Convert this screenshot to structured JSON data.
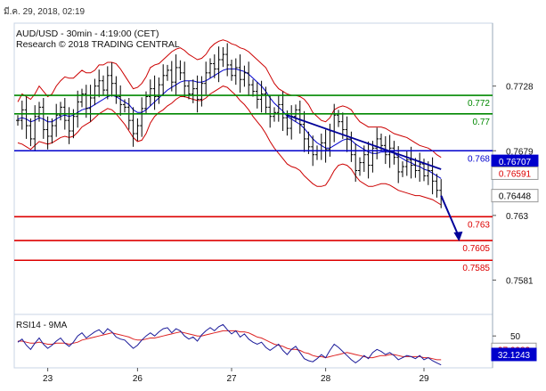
{
  "header": {
    "timestamp": "มี.ค. 29, 2018, 02:19",
    "title": "AUD/USD - 30min - 4:19:00 (CET)",
    "credit": "Research © 2018 TRADING CENTRAL"
  },
  "colors": {
    "background": "#ffffff",
    "frame": "#c8d4e4",
    "price": "#000000",
    "bollinger": "#cc0000",
    "moving_average": "#0000cc",
    "resistance": "#008800",
    "pivot": "#0000cc",
    "support": "#dd0000",
    "trendline": "#000099",
    "rsi": "#1a1a99",
    "rsi_ma": "#dd2222"
  },
  "chart_data": [
    {
      "type": "candlestick",
      "title": "AUD/USD - 30min - 4:19:00 (CET)",
      "instrument": "AUD/USD",
      "timeframe": "30min",
      "x_ticks": [
        "23",
        "26",
        "27",
        "28",
        "29"
      ],
      "y_ticks": [
        0.7728,
        0.7679,
        0.763,
        0.7581
      ],
      "ylim": [
        0.7555,
        0.7775
      ],
      "series": [
        {
          "name": "",
          "kind": "close",
          "values": [
            0.7702,
            0.771,
            0.7698,
            0.7688,
            0.7705,
            0.7712,
            0.7695,
            0.769,
            0.7698,
            0.7706,
            0.7712,
            0.7702,
            0.7694,
            0.7705,
            0.7716,
            0.7722,
            0.7711,
            0.7719,
            0.7728,
            0.7732,
            0.7725,
            0.7736,
            0.773,
            0.772,
            0.7714,
            0.7712,
            0.7702,
            0.7692,
            0.7698,
            0.7711,
            0.772,
            0.7726,
            0.772,
            0.7729,
            0.7736,
            0.774,
            0.7731,
            0.7742,
            0.7738,
            0.7728,
            0.7722,
            0.7726,
            0.7718,
            0.773,
            0.7738,
            0.7745,
            0.7741,
            0.7748,
            0.7752,
            0.7744,
            0.7736,
            0.7742,
            0.7733,
            0.7738,
            0.7729,
            0.7724,
            0.7718,
            0.7722,
            0.7712,
            0.7705,
            0.7708,
            0.7714,
            0.7704,
            0.7696,
            0.7705,
            0.771,
            0.7699,
            0.7688,
            0.7682,
            0.7676,
            0.7679,
            0.7685,
            0.768,
            0.7694,
            0.7706,
            0.7701,
            0.7695,
            0.7688,
            0.7676,
            0.7664,
            0.767,
            0.7676,
            0.7668,
            0.7681,
            0.7688,
            0.7683,
            0.7676,
            0.7681,
            0.7674,
            0.7663,
            0.7667,
            0.7672,
            0.7668,
            0.7664,
            0.7669,
            0.766,
            0.7664,
            0.7656,
            0.7649,
            0.7644
          ]
        },
        {
          "name": "",
          "kind": "bollinger-upper",
          "values": [
            0.7716,
            0.7722,
            0.772,
            0.7718,
            0.7722,
            0.7728,
            0.7724,
            0.772,
            0.7722,
            0.7728,
            0.7732,
            0.7735,
            0.7734,
            0.7734,
            0.7737,
            0.774,
            0.7738,
            0.7738,
            0.774,
            0.7744,
            0.7744,
            0.7746,
            0.7746,
            0.7745,
            0.7741,
            0.7736,
            0.7731,
            0.7726,
            0.7727,
            0.773,
            0.7735,
            0.7742,
            0.7744,
            0.7745,
            0.7748,
            0.7751,
            0.7754,
            0.7756,
            0.7757,
            0.7755,
            0.7752,
            0.775,
            0.7748,
            0.7749,
            0.7752,
            0.7757,
            0.776,
            0.7762,
            0.7763,
            0.7762,
            0.776,
            0.7759,
            0.7757,
            0.7756,
            0.7754,
            0.7751,
            0.7748,
            0.7745,
            0.7742,
            0.7736,
            0.773,
            0.7726,
            0.7724,
            0.7722,
            0.7721,
            0.7721,
            0.772,
            0.7718,
            0.7714,
            0.7708,
            0.7705,
            0.7702,
            0.7701,
            0.7704,
            0.771,
            0.7712,
            0.7713,
            0.7712,
            0.771,
            0.7705,
            0.7701,
            0.7699,
            0.7697,
            0.7697,
            0.7697,
            0.7697,
            0.7696,
            0.7694,
            0.7692,
            0.7691,
            0.769,
            0.7689,
            0.7687,
            0.7685,
            0.7683,
            0.7682,
            0.7681,
            0.7679,
            0.7676,
            0.7674
          ]
        },
        {
          "name": "",
          "kind": "bollinger-lower",
          "values": [
            0.7685,
            0.7684,
            0.7682,
            0.768,
            0.7683,
            0.7686,
            0.7685,
            0.7684,
            0.7685,
            0.7687,
            0.7689,
            0.769,
            0.7689,
            0.769,
            0.7693,
            0.7697,
            0.7699,
            0.7701,
            0.7704,
            0.7707,
            0.7709,
            0.7711,
            0.771,
            0.7707,
            0.7703,
            0.7699,
            0.7694,
            0.7689,
            0.7686,
            0.7687,
            0.7692,
            0.77,
            0.7705,
            0.7708,
            0.771,
            0.7713,
            0.7715,
            0.7718,
            0.772,
            0.772,
            0.7719,
            0.7718,
            0.7717,
            0.7717,
            0.7719,
            0.7722,
            0.7724,
            0.7726,
            0.7728,
            0.7727,
            0.7724,
            0.7721,
            0.7717,
            0.7714,
            0.771,
            0.7705,
            0.7701,
            0.7697,
            0.7692,
            0.7686,
            0.7681,
            0.7677,
            0.7673,
            0.7669,
            0.7667,
            0.7666,
            0.7664,
            0.766,
            0.7657,
            0.7654,
            0.7652,
            0.7652,
            0.7653,
            0.7658,
            0.7664,
            0.7668,
            0.7669,
            0.7668,
            0.7665,
            0.766,
            0.7656,
            0.7654,
            0.7652,
            0.7652,
            0.7653,
            0.7654,
            0.7654,
            0.7653,
            0.7651,
            0.7649,
            0.7648,
            0.7647,
            0.7646,
            0.7645,
            0.7645,
            0.7644,
            0.7643,
            0.7642,
            0.764,
            0.7638
          ]
        },
        {
          "name": "",
          "kind": "moving-average",
          "values": [
            0.7703,
            0.7704,
            0.7703,
            0.7701,
            0.7702,
            0.7704,
            0.7703,
            0.7701,
            0.7701,
            0.7703,
            0.7705,
            0.7706,
            0.7705,
            0.7706,
            0.7708,
            0.771,
            0.7711,
            0.7712,
            0.7714,
            0.7716,
            0.7718,
            0.772,
            0.7721,
            0.772,
            0.7718,
            0.7716,
            0.7714,
            0.771,
            0.7708,
            0.7708,
            0.771,
            0.7713,
            0.7716,
            0.7719,
            0.7722,
            0.7725,
            0.7727,
            0.7729,
            0.7731,
            0.7732,
            0.7732,
            0.7732,
            0.7731,
            0.7731,
            0.7732,
            0.7734,
            0.7736,
            0.7738,
            0.774,
            0.7741,
            0.7741,
            0.7741,
            0.774,
            0.7739,
            0.7737,
            0.7734,
            0.7731,
            0.7728,
            0.7724,
            0.7719,
            0.7715,
            0.7712,
            0.7709,
            0.7705,
            0.7703,
            0.7701,
            0.7699,
            0.7696,
            0.7692,
            0.7688,
            0.7685,
            0.7683,
            0.7681,
            0.7681,
            0.7683,
            0.7685,
            0.7687,
            0.7688,
            0.7687,
            0.7684,
            0.7682,
            0.768,
            0.7678,
            0.7677,
            0.7677,
            0.7678,
            0.7678,
            0.7678,
            0.7677,
            0.7675,
            0.7673,
            0.7671,
            0.767,
            0.7668,
            0.7667,
            0.7665,
            0.7664,
            0.7662,
            0.766,
            0.7658
          ]
        }
      ],
      "levels": [
        {
          "label": "0.772",
          "value": 0.7721,
          "type": "resistance",
          "color": "#008800"
        },
        {
          "label": "0.77",
          "value": 0.7707,
          "type": "resistance",
          "color": "#008800"
        },
        {
          "label": "0.768",
          "value": 0.7679,
          "type": "pivot",
          "color": "#0000cc"
        },
        {
          "label": "0.763",
          "value": 0.7629,
          "type": "support",
          "color": "#dd0000"
        },
        {
          "label": "0.7605",
          "value": 0.7611,
          "type": "support",
          "color": "#dd0000"
        },
        {
          "label": "0.7585",
          "value": 0.7596,
          "type": "support",
          "color": "#dd0000"
        }
      ],
      "price_tags": [
        {
          "label": "0.76707",
          "value": 0.7671,
          "fill": "#0000cc",
          "text": "#ffffff"
        },
        {
          "label": "0.76591",
          "value": 0.7662,
          "fill": "#ffffff",
          "text": "#dd0000"
        },
        {
          "label": "0.76448",
          "value": 0.7645,
          "fill": "#ffffff",
          "text": "#000000"
        }
      ],
      "trendline": {
        "from": {
          "index": 63,
          "value": 0.7706
        },
        "to": {
          "index": 99,
          "value": 0.7665
        }
      },
      "projection_arrow": {
        "from": {
          "index": 99,
          "value": 0.7645
        },
        "to": {
          "index": 103,
          "value": 0.7611
        }
      },
      "grid": false
    },
    {
      "type": "line",
      "title": "RSI14 - 9MA",
      "x_ticks": [
        "23",
        "26",
        "27",
        "28",
        "29"
      ],
      "y_ticks": [
        50
      ],
      "ylim": [
        20,
        70
      ],
      "series": [
        {
          "name": "",
          "kind": "rsi",
          "values": [
            44,
            47,
            41,
            37,
            43,
            48,
            42,
            38,
            41,
            45,
            48,
            43,
            40,
            44,
            50,
            53,
            48,
            51,
            54,
            56,
            52,
            57,
            54,
            49,
            47,
            46,
            42,
            38,
            41,
            46,
            50,
            53,
            50,
            54,
            57,
            58,
            53,
            57,
            55,
            50,
            47,
            49,
            45,
            51,
            55,
            58,
            55,
            59,
            61,
            56,
            52,
            55,
            49,
            52,
            47,
            44,
            42,
            44,
            39,
            36,
            39,
            42,
            36,
            32,
            37,
            40,
            34,
            28,
            26,
            25,
            28,
            32,
            29,
            36,
            42,
            39,
            35,
            31,
            27,
            24,
            27,
            31,
            28,
            34,
            37,
            35,
            32,
            34,
            31,
            27,
            29,
            31,
            30,
            28,
            31,
            27,
            29,
            26,
            24,
            22
          ]
        },
        {
          "name": "",
          "kind": "rsi-ma",
          "values": [
            45,
            45,
            44,
            43,
            43,
            44,
            43,
            42,
            42,
            43,
            43,
            43,
            42,
            43,
            44,
            46,
            47,
            48,
            49,
            50,
            51,
            52,
            53,
            52,
            51,
            50,
            49,
            47,
            46,
            46,
            47,
            48,
            48,
            49,
            50,
            51,
            52,
            53,
            54,
            53,
            52,
            51,
            50,
            50,
            51,
            52,
            53,
            54,
            55,
            55,
            55,
            55,
            54,
            54,
            53,
            51,
            49,
            48,
            46,
            44,
            42,
            41,
            40,
            38,
            37,
            37,
            36,
            34,
            33,
            31,
            30,
            30,
            29,
            30,
            31,
            32,
            33,
            34,
            33,
            32,
            31,
            30,
            29,
            29,
            30,
            31,
            31,
            32,
            32,
            31,
            30,
            30,
            30,
            30,
            30,
            29,
            29,
            28,
            27,
            27
          ]
        }
      ],
      "tags": [
        {
          "label": "37.0082",
          "value": 37.0,
          "fill": "#ffffff",
          "text": "#dd0000"
        },
        {
          "label": "32.1243",
          "value": 32.1,
          "fill": "#0000cc",
          "text": "#ffffff"
        }
      ],
      "grid": false
    }
  ]
}
